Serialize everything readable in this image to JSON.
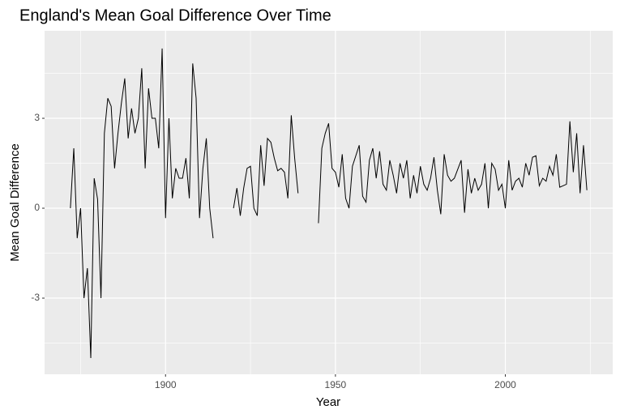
{
  "chart_data": {
    "type": "line",
    "title": "England's Mean Goal Difference Over Time",
    "x_label": "Year",
    "y_label": "Mean Goal Difference",
    "x": [
      1872,
      1873,
      1874,
      1875,
      1876,
      1877,
      1878,
      1879,
      1880,
      1881,
      1882,
      1883,
      1884,
      1885,
      1886,
      1887,
      1888,
      1889,
      1890,
      1891,
      1892,
      1893,
      1894,
      1895,
      1896,
      1897,
      1898,
      1899,
      1900,
      1901,
      1902,
      1903,
      1904,
      1905,
      1906,
      1907,
      1908,
      1909,
      1910,
      1911,
      1912,
      1913,
      1914,
      1915,
      1916,
      1917,
      1918,
      1919,
      1920,
      1921,
      1922,
      1923,
      1924,
      1925,
      1926,
      1927,
      1928,
      1929,
      1930,
      1931,
      1932,
      1933,
      1934,
      1935,
      1936,
      1937,
      1938,
      1939,
      1940,
      1941,
      1942,
      1943,
      1944,
      1945,
      1946,
      1947,
      1948,
      1949,
      1950,
      1951,
      1952,
      1953,
      1954,
      1955,
      1956,
      1957,
      1958,
      1959,
      1960,
      1961,
      1962,
      1963,
      1964,
      1965,
      1966,
      1967,
      1968,
      1969,
      1970,
      1971,
      1972,
      1973,
      1974,
      1975,
      1976,
      1977,
      1978,
      1979,
      1980,
      1981,
      1982,
      1983,
      1984,
      1985,
      1986,
      1987,
      1988,
      1989,
      1990,
      1991,
      1992,
      1993,
      1994,
      1995,
      1996,
      1997,
      1998,
      1999,
      2000,
      2001,
      2002,
      2003,
      2004,
      2005,
      2006,
      2007,
      2008,
      2009,
      2010,
      2011,
      2012,
      2013,
      2014,
      2015,
      2016,
      2017,
      2018,
      2019,
      2020,
      2021,
      2022,
      2023,
      2024
    ],
    "series": [
      {
        "color": "#000000",
        "values": [
          0,
          2,
          -1,
          0,
          -3,
          -2,
          -5,
          1,
          0.3,
          -3,
          2.5,
          3.67,
          3.4,
          1.33,
          2.5,
          3.5,
          4.33,
          2.33,
          3.33,
          2.5,
          3,
          4.67,
          1.33,
          4,
          3,
          3,
          2,
          5.33,
          -0.33,
          3,
          0.33,
          1.33,
          1,
          1,
          1.67,
          0.33,
          4.83,
          3.67,
          -0.33,
          1.33,
          2.33,
          0,
          -1,
          null,
          null,
          null,
          null,
          null,
          0,
          0.67,
          -0.25,
          0.67,
          1.33,
          1.4,
          0,
          -0.25,
          2.1,
          0.75,
          2.33,
          2.2,
          1.67,
          1.25,
          1.33,
          1.2,
          0.33,
          3.1,
          1.67,
          0.5,
          null,
          null,
          null,
          null,
          null,
          -0.5,
          2,
          2.5,
          2.83,
          1.33,
          1.2,
          0.7,
          1.8,
          0.33,
          0,
          1.4,
          1.75,
          2.1,
          0.4,
          0.2,
          1.6,
          2,
          1,
          1.9,
          0.8,
          0.6,
          1.6,
          1.1,
          0.5,
          1.5,
          1,
          1.6,
          0.33,
          1.1,
          0.5,
          1.4,
          0.8,
          0.6,
          1,
          1.7,
          0.6,
          -0.2,
          1.8,
          1.1,
          0.9,
          1,
          1.3,
          1.6,
          -0.15,
          1.3,
          0.5,
          1,
          0.6,
          0.8,
          1.5,
          0,
          1.5,
          1.3,
          0.6,
          0.8,
          0,
          1.6,
          0.6,
          0.9,
          1,
          0.7,
          1.5,
          1.1,
          1.7,
          1.75,
          0.75,
          1,
          0.9,
          1.4,
          1.1,
          1.8,
          0.7,
          0.75,
          0.8,
          2.9,
          1.2,
          2.5,
          0.5,
          2.1,
          0.6
        ]
      }
    ],
    "xlim": [
      1864.4,
      2031.6
    ],
    "xticks": [
      1900,
      1950,
      2000
    ],
    "ylim": [
      -5.54,
      5.92
    ],
    "yticks": [
      -3,
      0,
      3
    ],
    "grid": true
  }
}
